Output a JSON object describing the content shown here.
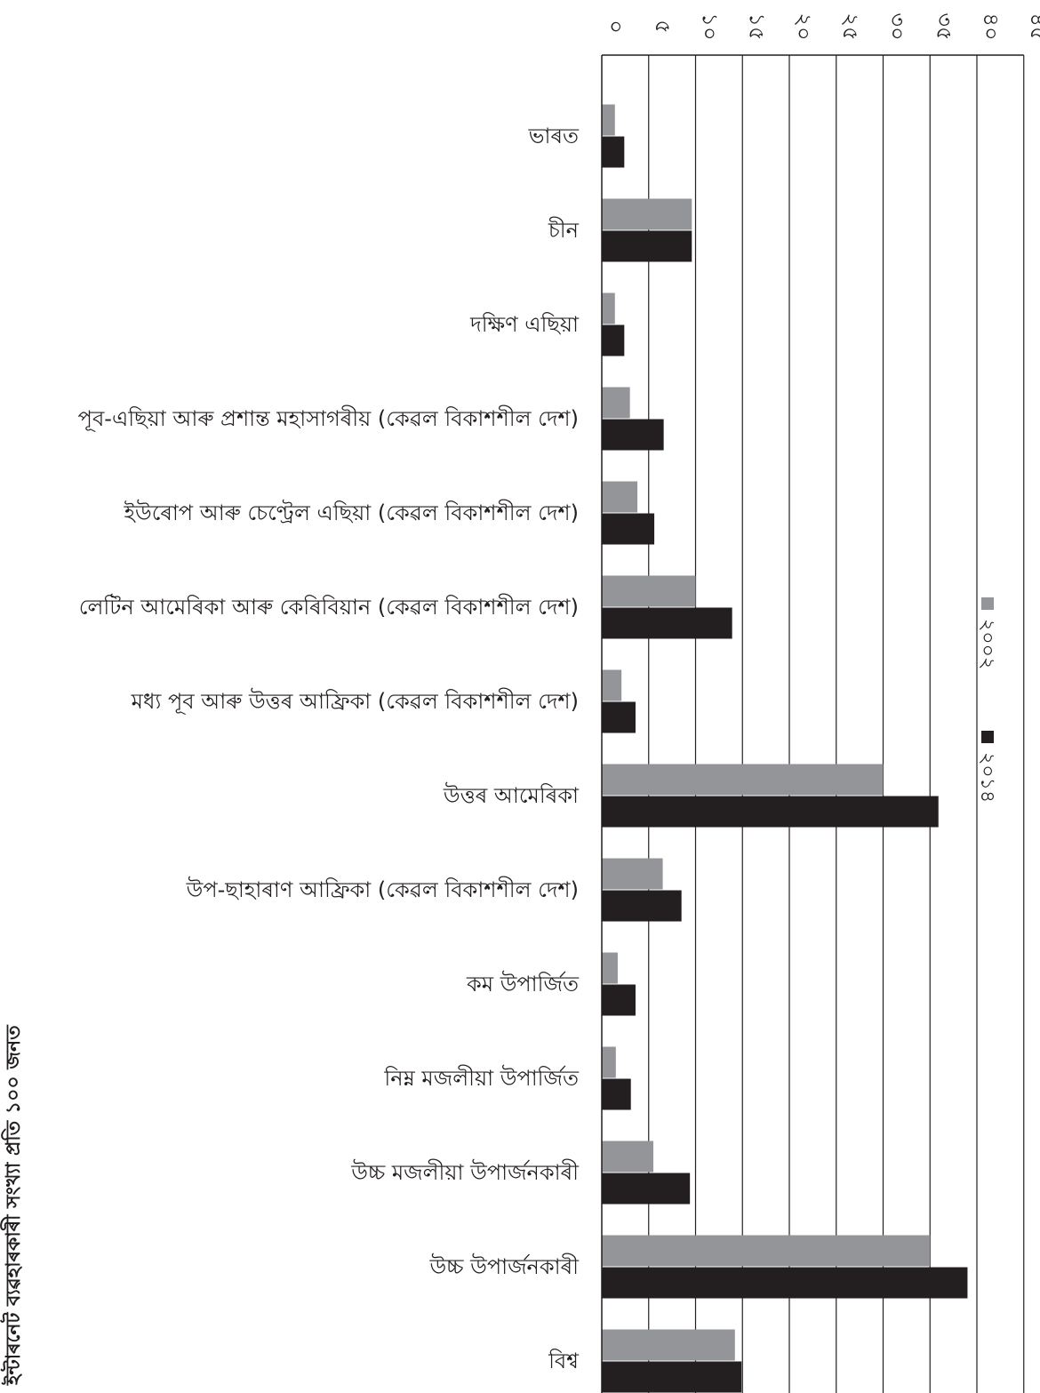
{
  "side_note": "ইন্টাৰনেট ব্যৱহাৰকাৰী সংখ্যা প্ৰতি ১০০ জনত",
  "chart_data": {
    "type": "bar",
    "orientation": "horizontal",
    "title": "",
    "xlabel": "",
    "ylabel": "",
    "x_ticks": [
      "০",
      "৫",
      "১০",
      "১৫",
      "২০",
      "২৫",
      "৩০",
      "৩৫",
      "৪০",
      "৪৫"
    ],
    "xlim": [
      0,
      45
    ],
    "grid": true,
    "legend_position": "right",
    "categories": [
      "ভাৰত",
      "চীন",
      "দক্ষিণ এছিয়া",
      "পূব-এছিয়া আৰু প্ৰশান্ত মহাসাগৰীয়  (কেৱল বিকাশশীল দেশ)",
      "ইউৰোপ আৰু চেণ্ট্ৰেল এছিয়া (কেৱল বিকাশশীল দেশ)",
      "লেটিন আমেৰিকা আৰু কেৰিবিয়ান (কেৱল বিকাশশীল দেশ)",
      "মধ্য পূব আৰু উত্তৰ আফ্ৰিকা (কেৱল বিকাশশীল দেশ)",
      "উত্তৰ আমেৰিকা",
      "উপ-ছাহাৰাণ আফ্ৰিকা (কেৱল বিকাশশীল দেশ)",
      "কম উপাৰ্জিত",
      "নিম্ন মজলীয়া উপাৰ্জিত",
      "উচ্চ মজলীয়া উপাৰ্জনকাৰী",
      "উচ্চ উপাৰ্জনকাৰী",
      "বিশ্ব"
    ],
    "series": [
      {
        "name": "২০০২",
        "color": "#939598",
        "values": [
          1.4,
          9.6,
          1.4,
          3.0,
          3.8,
          10.0,
          2.1,
          30.0,
          6.5,
          1.7,
          1.5,
          5.5,
          35.0,
          14.2
        ]
      },
      {
        "name": "২০১৪",
        "color": "#231f20",
        "values": [
          2.4,
          9.6,
          2.4,
          6.6,
          5.6,
          13.9,
          3.6,
          35.9,
          8.5,
          3.6,
          3.1,
          9.4,
          39.0,
          14.9
        ]
      }
    ]
  }
}
